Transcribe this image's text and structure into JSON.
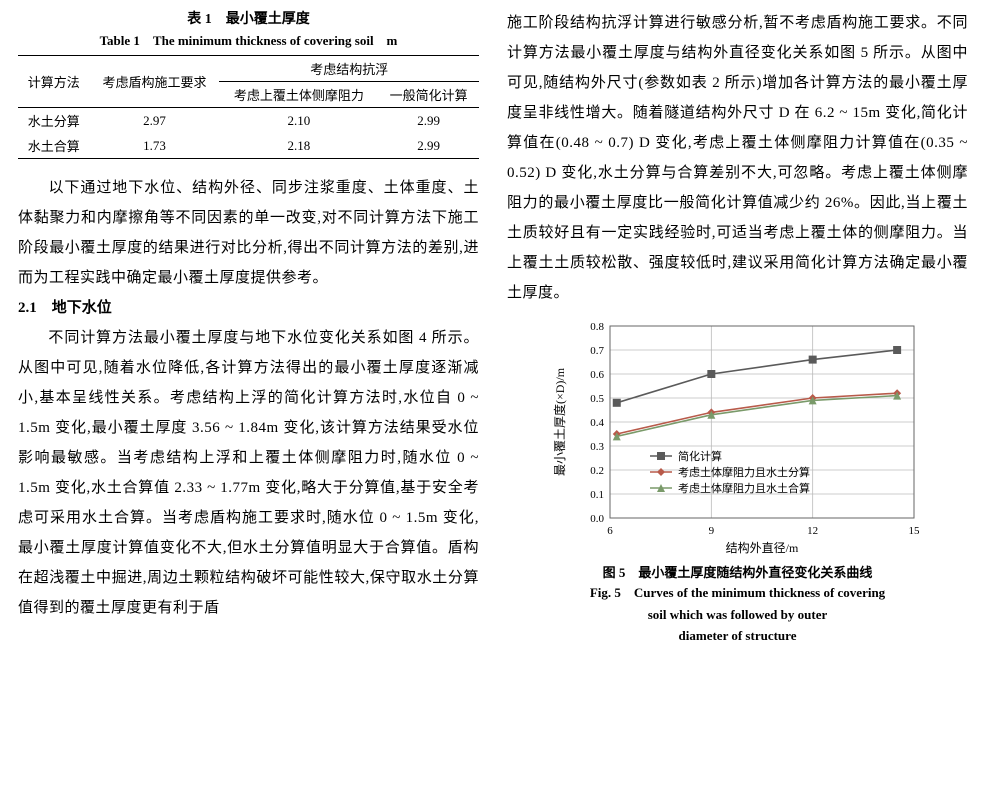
{
  "table1": {
    "caption_cn": "表 1　最小覆土厚度",
    "caption_en": "Table 1　The minimum thickness of covering soil　m",
    "head_top": {
      "calc_method": "计算方法",
      "shield_req": "考虑盾构施工要求",
      "anti_float": "考虑结构抗浮"
    },
    "head_sub": {
      "lateral": "考虑上覆土体侧摩阻力",
      "simplified": "一般简化计算"
    },
    "rows": [
      {
        "method": "水土分算",
        "shield": "2.97",
        "lateral": "2.10",
        "simple": "2.99"
      },
      {
        "method": "水土合算",
        "shield": "1.73",
        "lateral": "2.18",
        "simple": "2.99"
      }
    ]
  },
  "left_para1": "以下通过地下水位、结构外径、同步注浆重度、土体重度、土体黏聚力和内摩擦角等不同因素的单一改变,对不同计算方法下施工阶段最小覆土厚度的结果进行对比分析,得出不同计算方法的差别,进而为工程实践中确定最小覆土厚度提供参考。",
  "section21": "2.1　地下水位",
  "left_para2": "不同计算方法最小覆土厚度与地下水位变化关系如图 4 所示。从图中可见,随着水位降低,各计算方法得出的最小覆土厚度逐渐减小,基本呈线性关系。考虑结构上浮的简化计算方法时,水位自 0 ~ 1.5m 变化,最小覆土厚度 3.56 ~ 1.84m 变化,该计算方法结果受水位影响最敏感。当考虑结构上浮和上覆土体侧摩阻力时,随水位 0 ~ 1.5m 变化,水土合算值 2.33 ~ 1.77m 变化,略大于分算值,基于安全考虑可采用水土合算。当考虑盾构施工要求时,随水位 0 ~ 1.5m 变化,最小覆土厚度计算值变化不大,但水土分算值明显大于合算值。盾构在超浅覆土中掘进,周边土颗粒结构破坏可能性较大,保守取水土分算值得到的覆土厚度更有利于盾",
  "right_para": "施工阶段结构抗浮计算进行敏感分析,暂不考虑盾构施工要求。不同计算方法最小覆土厚度与结构外直径变化关系如图 5 所示。从图中可见,随结构外尺寸(参数如表 2 所示)增加各计算方法的最小覆土厚度呈非线性增大。随着隧道结构外尺寸 D 在 6.2 ~ 15m 变化,简化计算值在(0.48 ~ 0.7) D 变化,考虑上覆土体侧摩阻力计算值在(0.35 ~ 0.52) D 变化,水土分算与合算差别不大,可忽略。考虑上覆土体侧摩阻力的最小覆土厚度比一般简化计算值减少约 26%。因此,当上覆土土质较好且有一定实践经验时,可适当考虑上覆土体的侧摩阻力。当上覆土土质较松散、强度较低时,建议采用简化计算方法确定最小覆土厚度。",
  "chart5": {
    "type": "line",
    "caption_cn": "图 5　最小覆土厚度随结构外直径变化关系曲线",
    "caption_en_l1": "Fig. 5　Curves of the minimum thickness of covering",
    "caption_en_l2": "soil which was followed by outer",
    "caption_en_l3": "diameter of structure",
    "x_label": "结构外直径/m",
    "y_label": "最小覆土厚度(×D)/m",
    "x_ticks": [
      6,
      9,
      12,
      15
    ],
    "y_ticks": [
      0,
      0.1,
      0.2,
      0.3,
      0.4,
      0.5,
      0.6,
      0.7,
      0.8
    ],
    "xlim": [
      6,
      15
    ],
    "ylim": [
      0,
      0.8
    ],
    "series": [
      {
        "name": "简化计算",
        "color": "#5a5a5a",
        "marker": "square",
        "x": [
          6.2,
          9,
          12,
          14.5
        ],
        "y": [
          0.48,
          0.6,
          0.66,
          0.7
        ]
      },
      {
        "name": "考虑土体摩阻力且水土分算",
        "color": "#b85a4a",
        "marker": "diamond",
        "x": [
          6.2,
          9,
          12,
          14.5
        ],
        "y": [
          0.35,
          0.44,
          0.5,
          0.52
        ]
      },
      {
        "name": "考虑土体摩阻力且水土合算",
        "color": "#7a9a6a",
        "marker": "triangle",
        "x": [
          6.2,
          9,
          12,
          14.5
        ],
        "y": [
          0.34,
          0.43,
          0.49,
          0.51
        ]
      }
    ],
    "background_color": "#ffffff",
    "grid_color": "#bbbbbb",
    "axis_color": "#666666",
    "tick_fontsize": 11,
    "label_fontsize": 12,
    "legend_fontsize": 11,
    "line_width": 1.6,
    "marker_size": 4
  }
}
